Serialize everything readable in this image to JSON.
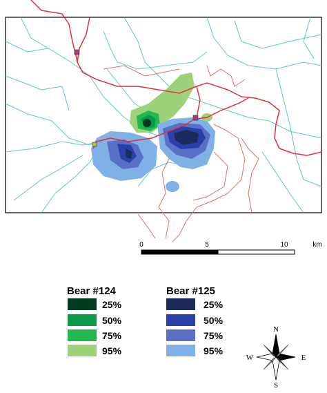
{
  "scale_bar": {
    "ticks": [
      "0",
      "5",
      "10"
    ],
    "unit": "km"
  },
  "legend": [
    {
      "title": "Bear #124",
      "items": [
        "25%",
        "50%",
        "75%",
        "95%"
      ]
    },
    {
      "title": "Bear #125",
      "items": [
        "25%",
        "50%",
        "75%",
        "95%"
      ]
    }
  ],
  "compass": {
    "north": "N",
    "east": "E",
    "south": "S",
    "west": "W"
  }
}
